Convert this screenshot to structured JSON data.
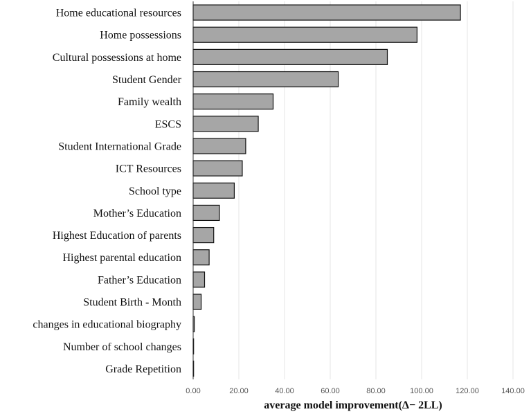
{
  "chart_data": {
    "type": "bar",
    "orientation": "horizontal",
    "title": "",
    "xlabel": "average model improvement(Δ− 2LL)",
    "ylabel": "",
    "xlim": [
      0,
      140
    ],
    "x_ticks": [
      0,
      20,
      40,
      60,
      80,
      100,
      120,
      140
    ],
    "x_tick_labels": [
      "0.00",
      "20.00",
      "40.00",
      "60.00",
      "80.00",
      "100.00",
      "120.00",
      "140.00"
    ],
    "grid": "vertical",
    "legend": "none",
    "categories": [
      "Home educational resources",
      "Home possessions",
      "Cultural possessions at home",
      "Student  Gender",
      "Family wealth",
      "ESCS",
      "Student International Grade",
      "ICT Resources",
      "School type",
      "Mother’s Education",
      "Highest Education of parents",
      "Highest parental education",
      "Father’s Education",
      "Student Birth - Month",
      "changes in educational biography",
      "Number of school changes",
      "Grade Repetition"
    ],
    "values": [
      117.0,
      98.0,
      85.0,
      63.5,
      35.0,
      28.5,
      23.0,
      21.5,
      18.0,
      11.5,
      9.0,
      7.0,
      5.0,
      3.5,
      0.5,
      0.2,
      0.2
    ],
    "colors": {
      "bar_fill": "#A6A6A6",
      "bar_stroke": "#111111",
      "grid": "#E4E4E4",
      "axis": "#333333"
    }
  }
}
